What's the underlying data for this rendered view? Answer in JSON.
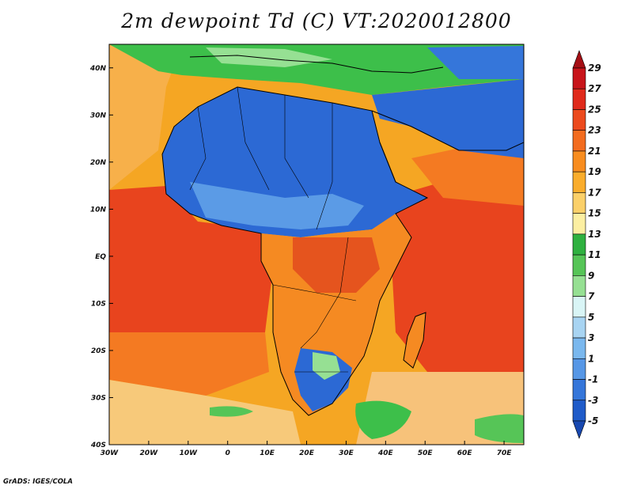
{
  "title": "2m dewpoint Td (C) VT:2020012800",
  "credit": "GrADS: IGES/COLA",
  "map": {
    "lon_range": [
      -30,
      75
    ],
    "lat_range": [
      -40,
      45
    ],
    "lon_ticks": [
      "30W",
      "20W",
      "10W",
      "0",
      "10E",
      "20E",
      "30E",
      "40E",
      "50E",
      "60E",
      "70E"
    ],
    "lat_ticks": [
      "40S",
      "30S",
      "20S",
      "10S",
      "EQ",
      "10N",
      "20N",
      "30N",
      "40N"
    ],
    "fill_regions": [
      {
        "name": "ocean-background",
        "color": "#f5a623"
      },
      {
        "name": "tropical-atlantic-warm",
        "color": "#e8441e"
      },
      {
        "name": "south-atlantic-mid",
        "color": "#f47a22"
      },
      {
        "name": "south-atlantic-cool",
        "color": "#f7c97a"
      },
      {
        "name": "indian-ocean-warm",
        "color": "#e8441e"
      },
      {
        "name": "arabian-sea-mid",
        "color": "#f47a22"
      },
      {
        "name": "mediterranean-green",
        "color": "#3dbf4a"
      },
      {
        "name": "sahara-blue",
        "color": "#2c69d4"
      },
      {
        "name": "sahara-lightblue",
        "color": "#5b9be6"
      },
      {
        "name": "central-africa-orange",
        "color": "#f58a22"
      },
      {
        "name": "congo-red",
        "color": "#e5541e"
      },
      {
        "name": "kalahari-blue",
        "color": "#2c69d4"
      },
      {
        "name": "south-indian-green",
        "color": "#3dbf4a"
      }
    ]
  },
  "colorbar": {
    "labels": [
      "29",
      "27",
      "25",
      "23",
      "21",
      "19",
      "17",
      "15",
      "13",
      "11",
      "9",
      "7",
      "5",
      "3",
      "1",
      "-1",
      "-3",
      "-5"
    ],
    "colors": [
      "#a50f15",
      "#c8141a",
      "#e02a1b",
      "#ec4a1d",
      "#f36c1f",
      "#f88d1f",
      "#faad2c",
      "#fbd069",
      "#fcefa2",
      "#2fb140",
      "#56c557",
      "#96e093",
      "#d9f5f6",
      "#a8d4f2",
      "#7ab8ee",
      "#5697e6",
      "#3576da",
      "#1f5bc9",
      "#1848b0"
    ]
  }
}
